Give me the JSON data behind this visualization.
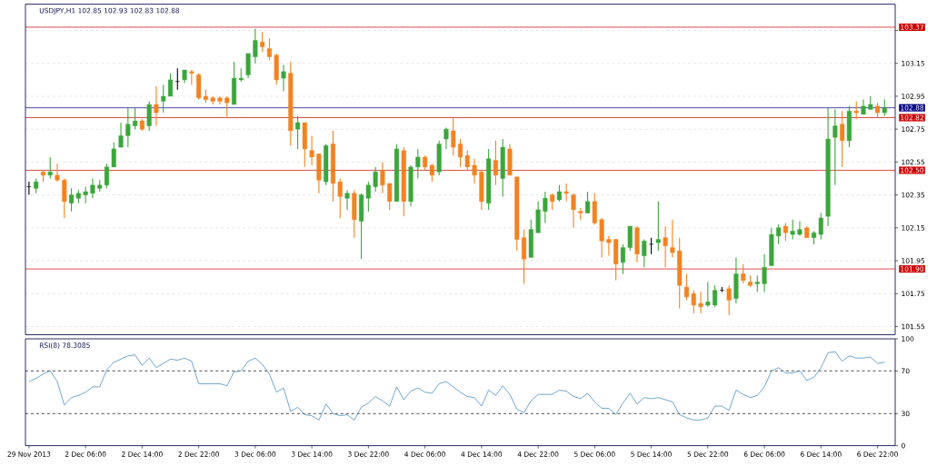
{
  "chart_data": [
    {
      "type": "candlestick",
      "title": "USDJPY,H1 102.85 102.93 102.83 102.88",
      "categories": [
        null,
        null,
        null,
        null,
        null,
        null,
        null,
        null,
        null,
        null,
        null,
        null,
        null,
        null,
        null,
        null,
        null,
        null,
        null,
        null,
        null,
        null,
        null,
        null,
        null,
        null,
        null,
        null,
        null,
        null,
        null,
        null,
        null,
        null,
        null,
        null,
        null,
        null,
        null,
        null,
        null,
        null,
        null,
        null,
        null,
        null,
        null,
        null,
        null,
        null,
        null,
        null,
        null,
        null,
        null,
        null,
        null,
        null,
        null,
        null,
        null,
        null,
        null,
        null,
        null,
        null,
        null,
        null,
        null,
        null,
        null,
        null,
        null,
        null,
        null,
        null,
        null,
        null,
        null,
        null,
        null,
        null,
        null,
        null,
        null,
        null,
        null,
        null,
        null,
        null,
        null,
        null,
        null,
        null,
        null,
        null,
        null,
        null,
        null,
        null,
        null,
        null,
        null,
        null,
        null,
        null,
        null,
        null,
        null,
        null,
        null,
        null,
        null,
        null,
        null,
        null,
        null,
        null,
        null,
        null,
        null,
        null
      ],
      "ohlc": [
        [
          102.4,
          102.43,
          102.35,
          102.4
        ],
        [
          102.39,
          102.45,
          102.36,
          102.43
        ],
        [
          102.49,
          102.5,
          102.43,
          102.47
        ],
        [
          102.47,
          102.58,
          102.45,
          102.49
        ],
        [
          102.47,
          102.54,
          102.43,
          102.44
        ],
        [
          102.44,
          102.45,
          102.21,
          102.31
        ],
        [
          102.3,
          102.39,
          102.25,
          102.35
        ],
        [
          102.33,
          102.38,
          102.3,
          102.36
        ],
        [
          102.35,
          102.4,
          102.3,
          102.37
        ],
        [
          102.36,
          102.45,
          102.33,
          102.41
        ],
        [
          102.39,
          102.44,
          102.37,
          102.41
        ],
        [
          102.41,
          102.54,
          102.39,
          102.52
        ],
        [
          102.52,
          102.67,
          102.52,
          102.63
        ],
        [
          102.64,
          102.79,
          102.64,
          102.71
        ],
        [
          102.71,
          102.88,
          102.64,
          102.78
        ],
        [
          102.77,
          102.88,
          102.75,
          102.8
        ],
        [
          102.8,
          102.81,
          102.74,
          102.75
        ],
        [
          102.77,
          102.92,
          102.74,
          102.9
        ],
        [
          102.9,
          103.01,
          102.77,
          102.85
        ],
        [
          102.92,
          103.02,
          102.85,
          102.95
        ],
        [
          102.95,
          103.09,
          102.95,
          103.05
        ],
        [
          103.04,
          103.12,
          102.99,
          103.04
        ],
        [
          103.05,
          103.11,
          103.03,
          103.11
        ],
        [
          103.1,
          103.11,
          103.02,
          103.09
        ],
        [
          103.08,
          103.09,
          102.93,
          102.94
        ],
        [
          102.95,
          102.99,
          102.91,
          102.93
        ],
        [
          102.94,
          102.95,
          102.9,
          102.92
        ],
        [
          102.94,
          102.95,
          102.9,
          102.92
        ],
        [
          102.94,
          102.95,
          102.82,
          102.91
        ],
        [
          102.9,
          103.16,
          102.9,
          103.06
        ],
        [
          103.05,
          103.12,
          103.04,
          103.06
        ],
        [
          103.08,
          103.21,
          103.06,
          103.21
        ],
        [
          103.19,
          103.36,
          103.15,
          103.29
        ],
        [
          103.28,
          103.34,
          103.22,
          103.25
        ],
        [
          103.24,
          103.3,
          103.17,
          103.19
        ],
        [
          103.2,
          103.21,
          103.02,
          103.05
        ],
        [
          103.06,
          103.14,
          102.98,
          103.1
        ],
        [
          103.09,
          103.16,
          102.65,
          102.74
        ],
        [
          102.75,
          102.83,
          102.63,
          102.79
        ],
        [
          102.79,
          102.79,
          102.52,
          102.63
        ],
        [
          102.62,
          102.71,
          102.53,
          102.58
        ],
        [
          102.6,
          102.6,
          102.36,
          102.44
        ],
        [
          102.43,
          102.66,
          102.41,
          102.65
        ],
        [
          102.66,
          102.74,
          102.31,
          102.42
        ],
        [
          102.43,
          102.45,
          102.21,
          102.34
        ],
        [
          102.33,
          102.38,
          102.26,
          102.36
        ],
        [
          102.36,
          102.38,
          102.09,
          102.2
        ],
        [
          102.19,
          102.36,
          101.96,
          102.35
        ],
        [
          102.33,
          102.43,
          102.25,
          102.41
        ],
        [
          102.4,
          102.52,
          102.37,
          102.49
        ],
        [
          102.5,
          102.55,
          102.36,
          102.41
        ],
        [
          102.42,
          102.42,
          102.26,
          102.31
        ],
        [
          102.31,
          102.66,
          102.31,
          102.63
        ],
        [
          102.62,
          102.64,
          102.22,
          102.31
        ],
        [
          102.31,
          102.53,
          102.28,
          102.52
        ],
        [
          102.52,
          102.63,
          102.45,
          102.58
        ],
        [
          102.58,
          102.59,
          102.5,
          102.52
        ],
        [
          102.53,
          102.54,
          102.43,
          102.47
        ],
        [
          102.49,
          102.68,
          102.47,
          102.66
        ],
        [
          102.69,
          102.76,
          102.63,
          102.75
        ],
        [
          102.74,
          102.82,
          102.59,
          102.64
        ],
        [
          102.66,
          102.69,
          102.52,
          102.58
        ],
        [
          102.59,
          102.62,
          102.5,
          102.52
        ],
        [
          102.53,
          102.57,
          102.42,
          102.47
        ],
        [
          102.49,
          102.5,
          102.26,
          102.31
        ],
        [
          102.3,
          102.63,
          102.26,
          102.57
        ],
        [
          102.56,
          102.68,
          102.41,
          102.47
        ],
        [
          102.45,
          102.69,
          102.34,
          102.64
        ],
        [
          102.63,
          102.66,
          102.47,
          102.47
        ],
        [
          102.46,
          102.46,
          102.01,
          102.08
        ],
        [
          102.09,
          102.14,
          101.81,
          101.96
        ],
        [
          101.97,
          102.2,
          101.97,
          102.14
        ],
        [
          102.12,
          102.31,
          102.12,
          102.26
        ],
        [
          102.25,
          102.37,
          102.18,
          102.33
        ],
        [
          102.35,
          102.36,
          102.26,
          102.31
        ],
        [
          102.32,
          102.41,
          102.31,
          102.37
        ],
        [
          102.37,
          102.42,
          102.31,
          102.36
        ],
        [
          102.35,
          102.36,
          102.15,
          102.26
        ],
        [
          102.25,
          102.27,
          102.2,
          102.24
        ],
        [
          102.24,
          102.37,
          102.24,
          102.31
        ],
        [
          102.31,
          102.36,
          102.17,
          102.18
        ],
        [
          102.2,
          102.21,
          101.97,
          102.07
        ],
        [
          102.08,
          102.1,
          101.98,
          102.06
        ],
        [
          102.08,
          102.08,
          101.83,
          101.93
        ],
        [
          101.94,
          102.05,
          101.87,
          102.03
        ],
        [
          102.03,
          102.16,
          102.01,
          102.16
        ],
        [
          102.15,
          102.16,
          101.94,
          101.99
        ],
        [
          101.98,
          102.08,
          101.91,
          102.07
        ],
        [
          102.05,
          102.09,
          101.99,
          102.05
        ],
        [
          102.06,
          102.31,
          102.01,
          102.08
        ],
        [
          102.09,
          102.16,
          101.91,
          102.04
        ],
        [
          102.03,
          102.2,
          101.97,
          102.0
        ],
        [
          102.01,
          102.09,
          101.66,
          101.8
        ],
        [
          101.79,
          101.87,
          101.71,
          101.73
        ],
        [
          101.75,
          101.77,
          101.63,
          101.68
        ],
        [
          101.69,
          101.76,
          101.63,
          101.67
        ],
        [
          101.68,
          101.82,
          101.67,
          101.7
        ],
        [
          101.68,
          101.8,
          101.67,
          101.77
        ],
        [
          101.77,
          101.79,
          101.76,
          101.77
        ],
        [
          101.78,
          101.8,
          101.62,
          101.71
        ],
        [
          101.72,
          101.97,
          101.69,
          101.87
        ],
        [
          101.87,
          101.93,
          101.81,
          101.83
        ],
        [
          101.82,
          101.86,
          101.79,
          101.8
        ],
        [
          101.81,
          101.86,
          101.76,
          101.82
        ],
        [
          101.81,
          101.99,
          101.76,
          101.91
        ],
        [
          101.92,
          102.15,
          101.92,
          102.11
        ],
        [
          102.1,
          102.17,
          102.05,
          102.15
        ],
        [
          102.16,
          102.18,
          102.07,
          102.12
        ],
        [
          102.11,
          102.2,
          102.08,
          102.13
        ],
        [
          102.11,
          102.19,
          102.1,
          102.14
        ],
        [
          102.15,
          102.16,
          102.09,
          102.09
        ],
        [
          102.09,
          102.13,
          102.05,
          102.12
        ],
        [
          102.11,
          102.24,
          102.08,
          102.21
        ],
        [
          102.22,
          102.88,
          102.16,
          102.69
        ],
        [
          102.7,
          102.87,
          102.41,
          102.77
        ],
        [
          102.78,
          102.86,
          102.52,
          102.68
        ],
        [
          102.68,
          102.89,
          102.64,
          102.86
        ],
        [
          102.86,
          102.92,
          102.81,
          102.85
        ],
        [
          102.84,
          102.93,
          102.84,
          102.89
        ],
        [
          102.87,
          102.95,
          102.87,
          102.9
        ],
        [
          102.89,
          102.91,
          102.82,
          102.85
        ],
        [
          102.85,
          102.93,
          102.83,
          102.88
        ]
      ],
      "colors": [
        "#000000",
        "#3ca63c",
        "#f28322",
        "#3ca63c",
        "#f28322",
        "#f28322",
        "#3ca63c",
        "#3ca63c",
        "#3ca63c",
        "#3ca63c",
        "#3ca63c",
        "#3ca63c",
        "#3ca63c",
        "#3ca63c",
        "#3ca63c",
        "#3ca63c",
        "#f28322",
        "#3ca63c",
        "#f28322",
        "#3ca63c",
        "#3ca63c",
        "#000000",
        "#3ca63c",
        "#f28322",
        "#f28322",
        "#f28322",
        "#f28322",
        "#f28322",
        "#f28322",
        "#3ca63c",
        "#3ca63c",
        "#3ca63c",
        "#3ca63c",
        "#f28322",
        "#f28322",
        "#f28322",
        "#3ca63c",
        "#f28322",
        "#3ca63c",
        "#f28322",
        "#f28322",
        "#f28322",
        "#3ca63c",
        "#f28322",
        "#f28322",
        "#3ca63c",
        "#f28322",
        "#3ca63c",
        "#3ca63c",
        "#3ca63c",
        "#f28322",
        "#f28322",
        "#3ca63c",
        "#f28322",
        "#3ca63c",
        "#3ca63c",
        "#f28322",
        "#f28322",
        "#3ca63c",
        "#3ca63c",
        "#f28322",
        "#f28322",
        "#f28322",
        "#f28322",
        "#f28322",
        "#3ca63c",
        "#f28322",
        "#3ca63c",
        "#f28322",
        "#f28322",
        "#f28322",
        "#3ca63c",
        "#3ca63c",
        "#3ca63c",
        "#f28322",
        "#3ca63c",
        "#f28322",
        "#f28322",
        "#f28322",
        "#3ca63c",
        "#f28322",
        "#f28322",
        "#f28322",
        "#f28322",
        "#3ca63c",
        "#3ca63c",
        "#f28322",
        "#3ca63c",
        "#000000",
        "#3ca63c",
        "#f28322",
        "#f28322",
        "#f28322",
        "#f28322",
        "#f28322",
        "#f28322",
        "#3ca63c",
        "#3ca63c",
        "#000000",
        "#f28322",
        "#3ca63c",
        "#f28322",
        "#f28322",
        "#3ca63c",
        "#3ca63c",
        "#3ca63c",
        "#3ca63c",
        "#f28322",
        "#3ca63c",
        "#3ca63c",
        "#f28322",
        "#3ca63c",
        "#3ca63c",
        "#3ca63c",
        "#3ca63c",
        "#f28322",
        "#3ca63c",
        "#f28322",
        "#3ca63c",
        "#3ca63c",
        "#f28322",
        "#3ca63c"
      ],
      "ylim": [
        101.5,
        103.51
      ],
      "yticks": [
        101.55,
        101.75,
        101.95,
        102.15,
        102.35,
        102.55,
        102.75,
        102.95,
        103.15,
        {
          "value": 103.35,
          "label": null
        }
      ],
      "grid": "y",
      "tick_labels": "y",
      "ref_lines": [
        {
          "axis": "y",
          "value": 103.37,
          "label": "103.37",
          "color": "#cc0000"
        },
        {
          "axis": "y",
          "value": 102.88,
          "label": "102.88",
          "color": "#000080"
        },
        {
          "axis": "y",
          "value": 102.82,
          "label": "102.82",
          "color": "#cc0000"
        },
        {
          "axis": "y",
          "value": 102.5,
          "label": "102.50",
          "color": "#cc0000"
        },
        {
          "axis": "y",
          "value": 101.9,
          "label": "101.90",
          "color": "#cc0000"
        }
      ]
    },
    {
      "type": "line",
      "title": "RSI(8) 78.3085",
      "categories": [
        "29 Nov 2013",
        null,
        null,
        null,
        null,
        null,
        null,
        null,
        "2 Dec 06:00",
        null,
        null,
        null,
        null,
        null,
        null,
        null,
        "2 Dec 14:00",
        null,
        null,
        null,
        null,
        null,
        null,
        null,
        "2 Dec 22:00",
        null,
        null,
        null,
        null,
        null,
        null,
        null,
        "3 Dec 06:00",
        null,
        null,
        null,
        null,
        null,
        null,
        null,
        "3 Dec 14:00",
        null,
        null,
        null,
        null,
        null,
        null,
        null,
        "3 Dec 22:00",
        null,
        null,
        null,
        null,
        null,
        null,
        null,
        "4 Dec 06:00",
        null,
        null,
        null,
        null,
        null,
        null,
        null,
        "4 Dec 14:00",
        null,
        null,
        null,
        null,
        null,
        null,
        null,
        "4 Dec 22:00",
        null,
        null,
        null,
        null,
        null,
        null,
        null,
        "5 Dec 06:00",
        null,
        null,
        null,
        null,
        null,
        null,
        null,
        "5 Dec 14:00",
        null,
        null,
        null,
        null,
        null,
        null,
        null,
        "5 Dec 22:00",
        null,
        null,
        null,
        null,
        null,
        null,
        null,
        "6 Dec 06:00",
        null,
        null,
        null,
        null,
        null,
        null,
        null,
        "6 Dec 14:00",
        null,
        null,
        null,
        null,
        null,
        null,
        null,
        "6 Dec 22:00",
        null
      ],
      "series": [
        {
          "color": "#4a90c0",
          "values": [
            60,
            63,
            67,
            70,
            60,
            38,
            45,
            47,
            50,
            55,
            55,
            71,
            78,
            81,
            84,
            85,
            75,
            82,
            73,
            77,
            81,
            80,
            82,
            79,
            58,
            58,
            58,
            58,
            56,
            69,
            70,
            79,
            82,
            76,
            67,
            50,
            54,
            32,
            36,
            29,
            28,
            24,
            39,
            30,
            28,
            29,
            24,
            36,
            40,
            46,
            42,
            37,
            55,
            43,
            51,
            54,
            50,
            49,
            58,
            60,
            55,
            50,
            46,
            45,
            37,
            52,
            47,
            56,
            48,
            34,
            31,
            42,
            48,
            48,
            48,
            52,
            51,
            46,
            44,
            49,
            41,
            35,
            35,
            29,
            40,
            49,
            39,
            45,
            44,
            45,
            43,
            41,
            29,
            26,
            24,
            24,
            26,
            37,
            37,
            33,
            52,
            48,
            45,
            47,
            55,
            70,
            73,
            68,
            68,
            70,
            61,
            64,
            73,
            87,
            88,
            79,
            84,
            82,
            82,
            83,
            77,
            78
          ]
        }
      ],
      "ylim": [
        0,
        100
      ],
      "yticks": [
        0,
        30,
        70,
        100
      ],
      "ref_lines": [
        {
          "axis": "y",
          "value": 70,
          "color": "#000000",
          "line_style": "dashed"
        },
        {
          "axis": "y",
          "value": 30,
          "color": "#000000",
          "line_style": "dashed"
        }
      ]
    }
  ]
}
